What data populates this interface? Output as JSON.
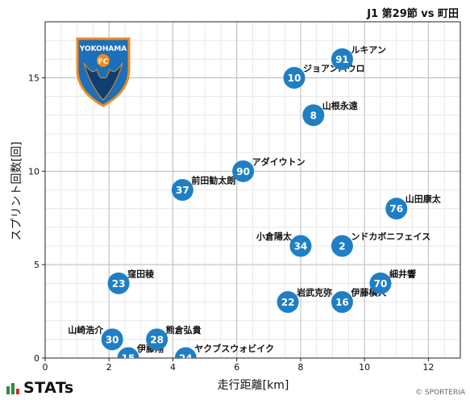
{
  "title": "J1 第29節 vs 町田",
  "footer": {
    "brand": "STATs",
    "copyright": "© SPORTERIA"
  },
  "team_logo": {
    "text": "YOKOHAMA",
    "badge_text": "FC"
  },
  "colors": {
    "marker": "#1f7fc4",
    "marker_text": "#ffffff",
    "grid_major": "#bbbbbb",
    "grid_minor": "#e3e3e3",
    "logo_blue": "#1c6fb8",
    "logo_orange": "#f08a1c"
  },
  "chart_data": {
    "type": "scatter",
    "xlabel": "走行距離[km]",
    "ylabel": "スプリント回数[回]",
    "xlim": [
      0,
      13
    ],
    "ylim": [
      0,
      18
    ],
    "xticks": [
      0,
      2,
      4,
      6,
      8,
      10,
      12
    ],
    "yticks": [
      0,
      5,
      10,
      15
    ],
    "grid": true,
    "points": [
      {
        "number": "91",
        "name": "ルキアン",
        "x": 9.3,
        "y": 16,
        "label_pos": "right"
      },
      {
        "number": "10",
        "name": "ジョアンパウロ",
        "x": 7.8,
        "y": 15,
        "label_pos": "right"
      },
      {
        "number": "8",
        "name": "山根永遠",
        "x": 8.4,
        "y": 13,
        "label_pos": "right"
      },
      {
        "number": "90",
        "name": "アダイウトン",
        "x": 6.2,
        "y": 10,
        "label_pos": "right"
      },
      {
        "number": "37",
        "name": "前田勧太朗",
        "x": 4.3,
        "y": 9,
        "label_pos": "right"
      },
      {
        "number": "76",
        "name": "山田康太",
        "x": 11.0,
        "y": 8,
        "label_pos": "right"
      },
      {
        "number": "34",
        "name": "小倉陽太",
        "x": 8.0,
        "y": 6,
        "label_pos": "left"
      },
      {
        "number": "2",
        "name": "ンドカボニフェイス",
        "x": 9.3,
        "y": 6,
        "label_pos": "right"
      },
      {
        "number": "23",
        "name": "窪田稜",
        "x": 2.3,
        "y": 4,
        "label_pos": "right"
      },
      {
        "number": "70",
        "name": "細井響",
        "x": 10.5,
        "y": 4,
        "label_pos": "right"
      },
      {
        "number": "22",
        "name": "岩武克弥",
        "x": 7.6,
        "y": 3,
        "label_pos": "right"
      },
      {
        "number": "16",
        "name": "伊藤槙人",
        "x": 9.3,
        "y": 3,
        "label_pos": "right"
      },
      {
        "number": "30",
        "name": "山崎浩介",
        "x": 2.1,
        "y": 1,
        "label_pos": "left"
      },
      {
        "number": "28",
        "name": "熊倉弘貴",
        "x": 3.5,
        "y": 1,
        "label_pos": "right"
      },
      {
        "number": "15",
        "name": "伊藤翔",
        "x": 2.6,
        "y": 0,
        "label_pos": "right"
      },
      {
        "number": "24",
        "name": "ヤクブスウォビイク",
        "x": 4.4,
        "y": 0,
        "label_pos": "right"
      }
    ]
  }
}
